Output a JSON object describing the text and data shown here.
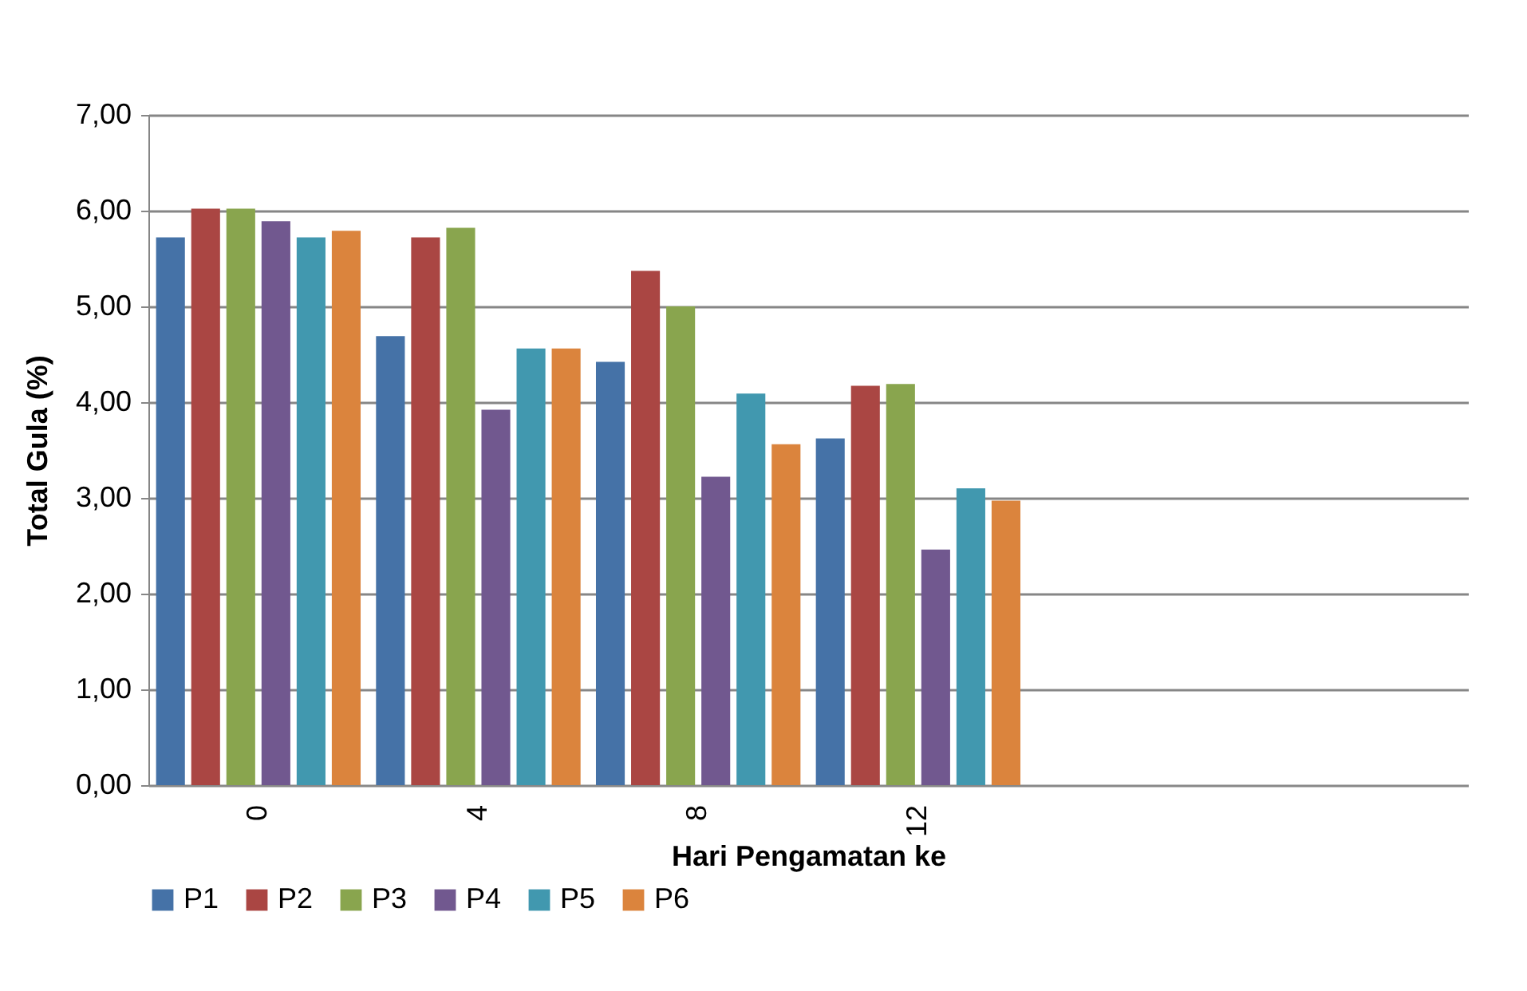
{
  "chart_data": {
    "type": "bar",
    "xlabel": "Hari Pengamatan ke",
    "ylabel": "Total Gula  (%)",
    "categories": [
      "0",
      "4",
      "8",
      "12",
      null,
      null
    ],
    "series": [
      {
        "name": "P1",
        "color": "#4572a7",
        "values": [
          5.72,
          4.69,
          4.42,
          3.62,
          null,
          null
        ]
      },
      {
        "name": "P2",
        "color": "#aa4643",
        "values": [
          6.02,
          5.72,
          5.37,
          4.17,
          null,
          null
        ]
      },
      {
        "name": "P3",
        "color": "#89a54e",
        "values": [
          6.02,
          5.82,
          5.0,
          4.19,
          null,
          null
        ]
      },
      {
        "name": "P4",
        "color": "#71588f",
        "values": [
          5.89,
          3.92,
          3.22,
          2.46,
          null,
          null
        ]
      },
      {
        "name": "P5",
        "color": "#4198af",
        "values": [
          5.72,
          4.56,
          4.09,
          3.1,
          null,
          null
        ]
      },
      {
        "name": "P6",
        "color": "#db843d",
        "values": [
          5.79,
          4.56,
          3.56,
          2.97,
          null,
          null
        ]
      }
    ],
    "ylim": [
      0,
      7
    ],
    "yticks": [
      {
        "value": 0,
        "label": "0,00"
      },
      {
        "value": 1,
        "label": "1,00"
      },
      {
        "value": 2,
        "label": "2,00"
      },
      {
        "value": 3,
        "label": "3,00"
      },
      {
        "value": 4,
        "label": "4,00"
      },
      {
        "value": 5,
        "label": "5,00"
      },
      {
        "value": 6,
        "label": "6,00"
      },
      {
        "value": 7,
        "label": "7,00"
      }
    ],
    "grid": "y",
    "legend": "bottom"
  }
}
